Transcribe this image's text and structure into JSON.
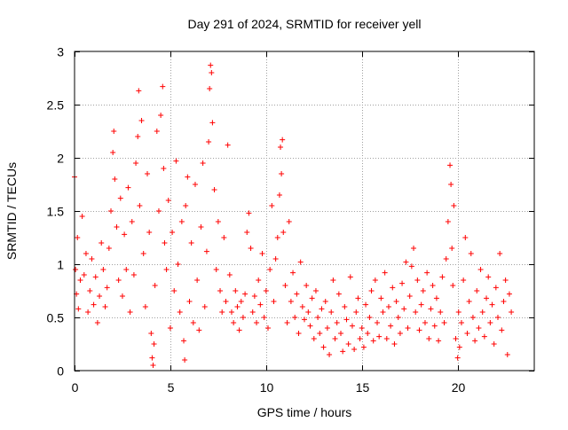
{
  "chart_data": {
    "type": "scatter",
    "title": "Day 291 of 2024, SRMTID for receiver yell",
    "xlabel": "GPS time / hours",
    "ylabel": "SRMTID / TECUs",
    "xlim": [
      0,
      24
    ],
    "ylim": [
      0,
      3
    ],
    "xticks": [
      0,
      5,
      10,
      15,
      20
    ],
    "xtick_labels": [
      "0",
      "5",
      "10",
      "15",
      "20"
    ],
    "yticks": [
      0,
      0.5,
      1,
      1.5,
      2,
      2.5,
      3
    ],
    "ytick_labels": [
      "0",
      "0.5",
      "1",
      "1.5",
      "2",
      "2.5",
      "3"
    ],
    "grid": true,
    "marker": "plus",
    "series_color": "#ff0000",
    "series": [
      {
        "name": "SRMTID",
        "x": [
          0.0,
          0.05,
          0.1,
          0.15,
          0.2,
          0.3,
          0.4,
          0.5,
          0.6,
          0.7,
          0.8,
          0.9,
          1.0,
          1.1,
          1.2,
          1.3,
          1.4,
          1.5,
          1.6,
          1.7,
          1.8,
          1.9,
          2.0,
          2.05,
          2.1,
          2.2,
          2.3,
          2.4,
          2.5,
          2.6,
          2.7,
          2.8,
          2.9,
          3.0,
          3.1,
          3.2,
          3.3,
          3.35,
          3.4,
          3.5,
          3.6,
          3.7,
          3.8,
          3.9,
          4.0,
          4.05,
          4.1,
          4.15,
          4.2,
          4.3,
          4.4,
          4.5,
          4.6,
          4.65,
          4.7,
          4.8,
          4.9,
          5.0,
          5.1,
          5.2,
          5.3,
          5.4,
          5.5,
          5.6,
          5.7,
          5.75,
          5.8,
          5.9,
          6.0,
          6.1,
          6.2,
          6.3,
          6.4,
          6.5,
          6.6,
          6.7,
          6.8,
          6.9,
          7.0,
          7.05,
          7.1,
          7.15,
          7.2,
          7.3,
          7.4,
          7.5,
          7.6,
          7.7,
          7.8,
          7.9,
          8.0,
          8.1,
          8.2,
          8.3,
          8.4,
          8.5,
          8.6,
          8.7,
          8.8,
          8.9,
          9.0,
          9.1,
          9.2,
          9.3,
          9.4,
          9.5,
          9.6,
          9.7,
          9.8,
          9.9,
          10.0,
          10.1,
          10.2,
          10.3,
          10.4,
          10.5,
          10.6,
          10.7,
          10.75,
          10.8,
          10.85,
          10.9,
          11.0,
          11.1,
          11.2,
          11.3,
          11.4,
          11.5,
          11.6,
          11.7,
          11.8,
          11.9,
          12.0,
          12.1,
          12.2,
          12.3,
          12.4,
          12.5,
          12.6,
          12.7,
          12.8,
          12.9,
          13.0,
          13.1,
          13.2,
          13.3,
          13.4,
          13.5,
          13.6,
          13.7,
          13.8,
          13.9,
          14.0,
          14.1,
          14.2,
          14.3,
          14.4,
          14.5,
          14.6,
          14.7,
          14.8,
          14.9,
          15.0,
          15.1,
          15.2,
          15.3,
          15.4,
          15.5,
          15.6,
          15.7,
          15.8,
          15.9,
          16.0,
          16.1,
          16.2,
          16.3,
          16.4,
          16.5,
          16.6,
          16.7,
          16.8,
          16.9,
          17.0,
          17.1,
          17.2,
          17.3,
          17.4,
          17.5,
          17.6,
          17.7,
          17.8,
          17.9,
          18.0,
          18.1,
          18.2,
          18.3,
          18.4,
          18.5,
          18.6,
          18.7,
          18.8,
          18.9,
          19.0,
          19.1,
          19.2,
          19.3,
          19.4,
          19.5,
          19.6,
          19.65,
          19.7,
          19.75,
          19.8,
          19.9,
          20.0,
          20.05,
          20.1,
          20.2,
          20.3,
          20.4,
          20.5,
          20.6,
          20.7,
          20.8,
          20.9,
          21.0,
          21.1,
          21.2,
          21.3,
          21.4,
          21.5,
          21.6,
          21.7,
          21.8,
          21.9,
          22.0,
          22.1,
          22.2,
          22.3,
          22.4,
          22.5,
          22.6,
          22.7,
          22.8
        ],
        "y": [
          1.82,
          0.95,
          0.72,
          1.25,
          0.58,
          0.85,
          1.45,
          0.9,
          1.1,
          0.55,
          0.75,
          1.05,
          0.62,
          0.88,
          0.45,
          0.7,
          1.2,
          0.95,
          0.6,
          0.78,
          1.15,
          1.5,
          2.05,
          2.25,
          1.8,
          1.35,
          0.85,
          1.62,
          0.7,
          1.28,
          0.95,
          1.72,
          0.55,
          1.4,
          0.9,
          1.95,
          2.2,
          2.63,
          1.55,
          2.35,
          1.1,
          0.6,
          1.85,
          1.3,
          0.35,
          0.12,
          0.05,
          0.25,
          0.8,
          2.25,
          1.5,
          2.4,
          2.67,
          1.9,
          1.2,
          0.95,
          1.6,
          0.4,
          1.3,
          0.75,
          1.97,
          1.0,
          0.55,
          1.4,
          0.28,
          0.1,
          1.55,
          1.82,
          0.65,
          1.2,
          0.45,
          1.75,
          0.85,
          0.38,
          1.35,
          1.95,
          0.6,
          1.12,
          2.15,
          2.65,
          2.87,
          2.8,
          2.33,
          1.7,
          0.95,
          1.4,
          0.75,
          0.55,
          1.25,
          0.65,
          2.12,
          0.9,
          0.55,
          0.45,
          0.75,
          0.6,
          0.38,
          0.65,
          0.5,
          0.72,
          1.3,
          1.48,
          1.15,
          0.55,
          0.7,
          0.45,
          0.85,
          0.62,
          1.1,
          0.5,
          0.75,
          0.4,
          0.95,
          1.55,
          0.65,
          1.05,
          1.25,
          1.65,
          2.1,
          1.85,
          2.17,
          1.3,
          0.8,
          0.45,
          1.4,
          0.65,
          0.92,
          0.5,
          0.72,
          0.35,
          1.02,
          0.6,
          0.48,
          0.8,
          0.55,
          0.42,
          0.68,
          0.3,
          0.75,
          0.5,
          0.35,
          0.58,
          0.22,
          0.65,
          0.4,
          0.15,
          0.55,
          0.85,
          0.3,
          0.45,
          0.72,
          0.35,
          0.18,
          0.6,
          0.48,
          0.25,
          0.88,
          0.42,
          0.2,
          0.55,
          0.68,
          0.3,
          0.4,
          0.22,
          0.62,
          0.35,
          0.5,
          0.75,
          0.28,
          0.85,
          0.45,
          0.32,
          0.68,
          0.55,
          0.92,
          0.3,
          0.6,
          0.42,
          0.78,
          0.25,
          0.65,
          0.5,
          0.35,
          0.82,
          0.58,
          1.02,
          0.4,
          0.7,
          0.98,
          1.15,
          0.55,
          0.85,
          0.38,
          0.62,
          0.75,
          0.45,
          0.92,
          0.3,
          0.58,
          0.8,
          0.42,
          0.68,
          0.28,
          0.55,
          0.88,
          0.45,
          1.05,
          1.4,
          1.93,
          1.75,
          1.15,
          0.8,
          1.55,
          0.3,
          0.12,
          0.55,
          0.22,
          0.45,
          0.85,
          1.25,
          0.35,
          0.65,
          1.1,
          0.5,
          0.28,
          0.75,
          0.4,
          0.95,
          0.55,
          0.32,
          0.68,
          0.88,
          0.45,
          0.62,
          0.25,
          0.78,
          0.5,
          1.1,
          0.38,
          0.65,
          0.85,
          0.15,
          0.72,
          0.55
        ]
      }
    ]
  }
}
